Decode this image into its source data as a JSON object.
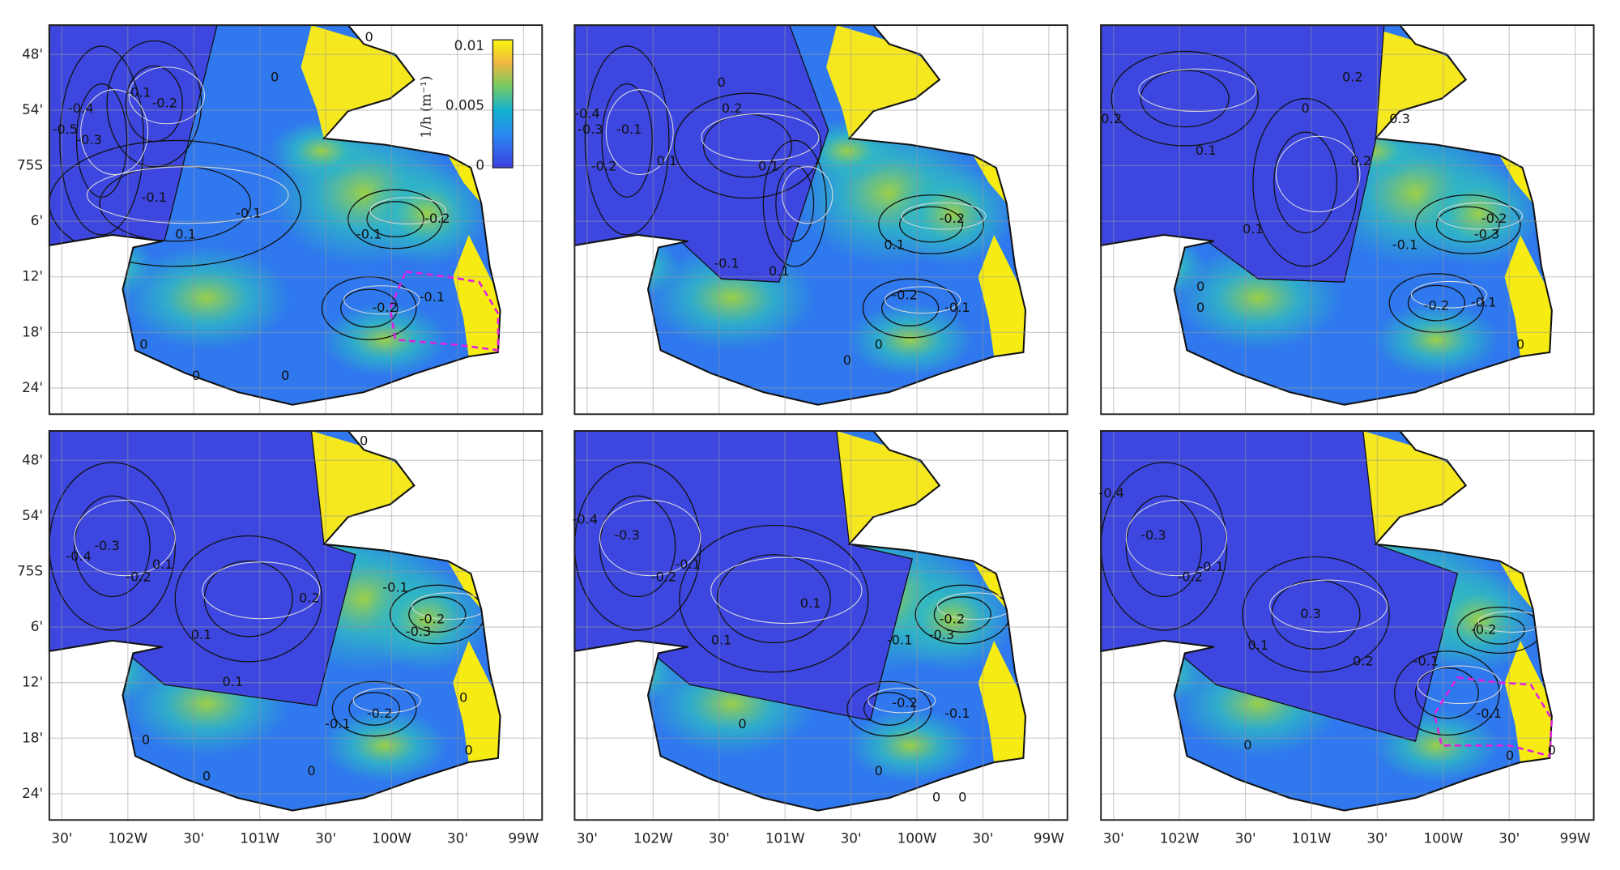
{
  "y_tick_labels": [
    "48'",
    "54'",
    "75S",
    "6'",
    "12'",
    "18'",
    "24'"
  ],
  "x_tick_labels": [
    "30'",
    "102W",
    "30'",
    "101W",
    "30'",
    "100W",
    "30'",
    "99W"
  ],
  "colorbar": {
    "label": "1/h (m⁻¹)",
    "tick_labels": [
      "0.01",
      "0.005",
      "0"
    ]
  },
  "panels": [
    {
      "contour_labels": [
        "0",
        "-0.1",
        "-0.2",
        "-0.4",
        "-0.5",
        "-0.3",
        "-0.1",
        "0.1",
        "-0.1",
        "0",
        "-0.1",
        "-0.2",
        "-0.2",
        "-0.1",
        "0",
        "0",
        "0"
      ]
    },
    {
      "contour_labels": [
        "-0.4",
        "-0.3",
        "-0.2",
        "-0.1",
        "0",
        "0.2",
        "0.1",
        "0.1",
        "-0.1",
        "0.1",
        "0.1",
        "-0.2",
        "-0.2",
        "-0.1",
        "0",
        "0"
      ]
    },
    {
      "contour_labels": [
        "0.2",
        "0.2",
        "0.3",
        "0",
        "0.1",
        "0.2",
        "0.1",
        "-0.1",
        "-0.2",
        "-0.3",
        "-0.2",
        "-0.1",
        "0",
        "0",
        "0"
      ]
    },
    {
      "contour_labels": [
        "0",
        "-0.4",
        "-0.3",
        "-0.2",
        "0.1",
        "0.2",
        "0.1",
        "0.1",
        "0",
        "-0.1",
        "-0.2",
        "-0.3",
        "-0.2",
        "-0.1",
        "0",
        "0",
        "0",
        "0"
      ]
    },
    {
      "contour_labels": [
        "-0.4",
        "-0.3",
        "-0.2",
        "-0.1",
        "0.1",
        "0.1",
        "0",
        "-0.1",
        "-0.2",
        "-0.3",
        "-0.2",
        "-0.1",
        "0",
        "0",
        "0"
      ]
    },
    {
      "contour_labels": [
        "-0.4",
        "-0.3",
        "-0.2",
        "-0.1",
        "0.3",
        "0.2",
        "0.1",
        "-0.1",
        "-0.2",
        "-0.1",
        "0",
        "0",
        "0"
      ]
    }
  ]
}
